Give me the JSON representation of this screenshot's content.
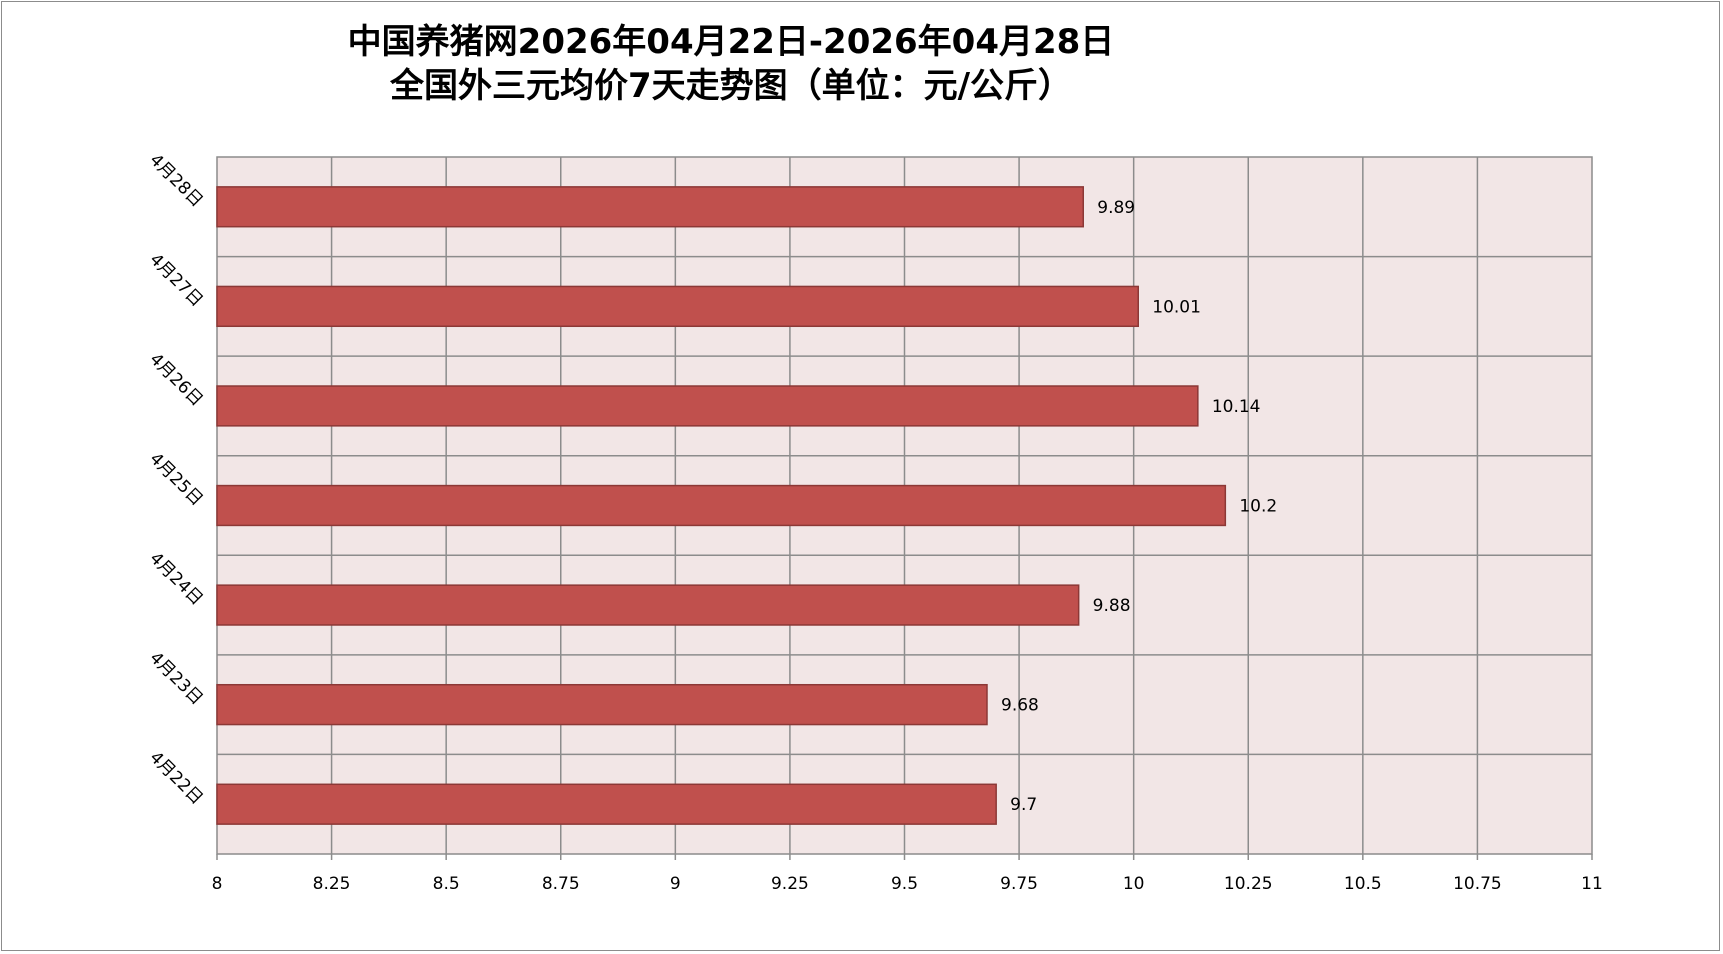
{
  "chart_data": {
    "type": "bar",
    "orientation": "horizontal",
    "title_line1": "中国养猪网2026年04月22日-2026年04月28日",
    "title_line2": "全国外三元均价7天走势图（单位：元/公斤）",
    "categories": [
      "4月28日",
      "4月27日",
      "4月26日",
      "4月25日",
      "4月24日",
      "4月23日",
      "4月22日"
    ],
    "values": [
      9.89,
      10.01,
      10.14,
      10.2,
      9.88,
      9.68,
      9.7
    ],
    "value_labels": [
      "9.89",
      "10.01",
      "10.14",
      "10.2",
      "9.88",
      "9.68",
      "9.7"
    ],
    "xlim": [
      8,
      11
    ],
    "x_ticks": [
      8,
      8.25,
      8.5,
      8.75,
      9,
      9.25,
      9.5,
      9.75,
      10,
      10.25,
      10.5,
      10.75,
      11
    ],
    "x_tick_labels": [
      "8",
      "8.25",
      "8.5",
      "8.75",
      "9",
      "9.25",
      "9.5",
      "9.75",
      "10",
      "10.25",
      "10.5",
      "10.75",
      "11"
    ],
    "grid": true,
    "legend": "none",
    "colors": {
      "bar_fill": "#c0504d",
      "bar_stroke": "#8c3836",
      "plot_background": "#f2e6e6",
      "grid": "#8c8c8c"
    }
  }
}
